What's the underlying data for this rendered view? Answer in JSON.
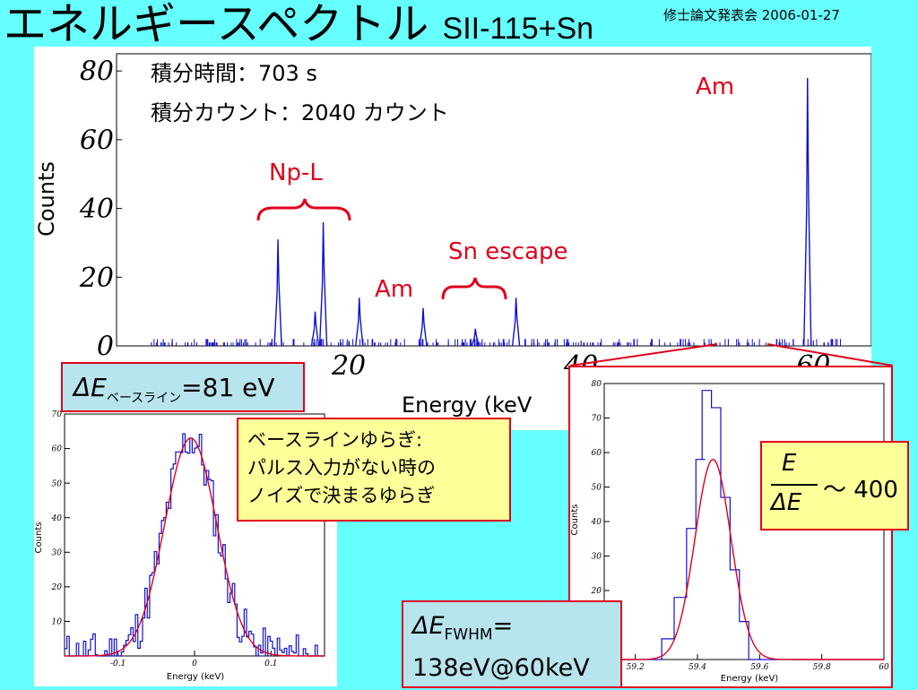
{
  "slide": {
    "title": "エネルギースペクトル",
    "title_detector": "SII-115+Sn",
    "conference": "修士論文発表会 2006-01-27"
  },
  "info": {
    "time": "積分時間：703 s",
    "counts": "積分カウント：2040 カウント"
  },
  "annotations": {
    "am_main": "Am",
    "npl": "Np-L",
    "sn_escape": "Sn escape",
    "am_low": "Am"
  },
  "boxes": {
    "baseline_symbol": "ΔE",
    "baseline_sub": "ベースライン",
    "baseline_value": "=81 eV",
    "note_lines": [
      "ベースラインゆらぎ:",
      "パルス入力がない時の",
      "ノイズで決まるゆらぎ"
    ],
    "res_num": "E",
    "res_den": "ΔE",
    "res_value": "～ 400",
    "fwhm_symbol": "ΔE",
    "fwhm_sub": "FWHM",
    "fwhm_eq": "=",
    "fwhm_value": "138eV@60keV"
  },
  "chart_data": [
    {
      "type": "histogram",
      "xlabel": "Energy (keV",
      "ylabel": "Counts",
      "xlim": [
        0,
        65
      ],
      "ylim": [
        0,
        85
      ],
      "xticks": [
        20,
        40,
        60
      ],
      "yticks": [
        0,
        20,
        40,
        60,
        80
      ],
      "peaks": [
        {
          "x": 13.9,
          "y": 31
        },
        {
          "x": 17.1,
          "y": 10
        },
        {
          "x": 17.8,
          "y": 36
        },
        {
          "x": 20.9,
          "y": 14
        },
        {
          "x": 26.4,
          "y": 11
        },
        {
          "x": 30.9,
          "y": 5
        },
        {
          "x": 34.4,
          "y": 14
        },
        {
          "x": 59.5,
          "y": 78
        }
      ]
    },
    {
      "type": "histogram",
      "xlabel": "Energy (keV)",
      "ylabel": "Counts",
      "xlim": [
        -0.17,
        0.17
      ],
      "ylim": [
        0,
        70
      ],
      "xticks": [
        -0.1,
        0,
        0.1
      ],
      "yticks": [
        10,
        20,
        30,
        40,
        50,
        60,
        70
      ],
      "gauss_fit": {
        "mean": -0.005,
        "sigma": 0.034,
        "amp": 63
      }
    },
    {
      "type": "histogram",
      "xlabel": "Energy (keV)",
      "ylabel": "Counts",
      "xlim": [
        59.1,
        60.0
      ],
      "ylim": [
        0,
        80
      ],
      "xticks": [
        59.2,
        59.4,
        59.6,
        59.8,
        60
      ],
      "yticks": [
        20,
        30,
        40,
        50,
        60,
        70,
        80
      ],
      "gauss_fit": {
        "mean": 59.45,
        "sigma": 0.058,
        "amp": 58
      },
      "bins": [
        {
          "x": 59.3,
          "y": 6
        },
        {
          "x": 59.34,
          "y": 18
        },
        {
          "x": 59.38,
          "y": 38
        },
        {
          "x": 59.41,
          "y": 58
        },
        {
          "x": 59.43,
          "y": 78
        },
        {
          "x": 59.46,
          "y": 73
        },
        {
          "x": 59.49,
          "y": 47
        },
        {
          "x": 59.52,
          "y": 26
        },
        {
          "x": 59.55,
          "y": 11
        }
      ]
    }
  ]
}
